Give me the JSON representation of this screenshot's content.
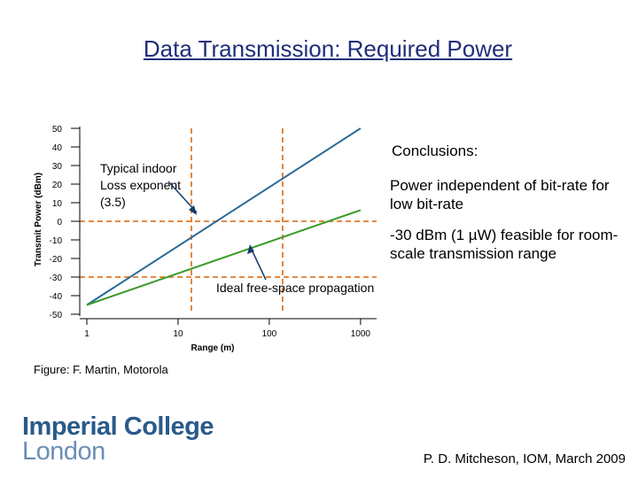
{
  "title": "Data Transmission: Required Power",
  "chart_data": {
    "type": "line",
    "xlabel": "Range (m)",
    "ylabel": "Transmit Power (dBm)",
    "xscale": "log",
    "xlim": [
      1,
      1500
    ],
    "ylim": [
      -50,
      50
    ],
    "x_ticks": [
      1,
      10,
      100,
      1000
    ],
    "x_tick_labels": [
      "1",
      "10",
      "100",
      "1000"
    ],
    "y_ticks": [
      50,
      40,
      30,
      20,
      10,
      0,
      -10,
      -20,
      -30,
      -40,
      -50
    ],
    "y_tick_labels": [
      "50",
      "40",
      "30",
      "20",
      "10",
      "0",
      "-10",
      "-20",
      "-30",
      "-40",
      "-50"
    ],
    "series": [
      {
        "name": "Typical indoor Loss exponent (3.5)",
        "color": "#2b6a96",
        "x": [
          1,
          1000
        ],
        "y": [
          -45,
          50
        ]
      },
      {
        "name": "Ideal free-space propagation",
        "color": "#3a9a2a",
        "x": [
          1,
          1000
        ],
        "y": [
          -45,
          6
        ]
      }
    ],
    "reference_lines": {
      "color": "#e07a2a",
      "vertical_x": [
        14,
        140
      ],
      "horizontal_y": [
        0,
        -30
      ]
    },
    "annotations": [
      {
        "text_lines": [
          "Typical indoor",
          "Loss exponent",
          "(3.5)"
        ]
      },
      {
        "text": "Ideal free-space propagation"
      }
    ]
  },
  "conclusions": {
    "heading": "Conclusions:",
    "p1": "Power independent of bit-rate for low bit-rate",
    "p2": "-30 dBm (1 µW) feasible for room-scale transmission range"
  },
  "credit": "Figure: F. Martin, Motorola",
  "logo": {
    "line1": "Imperial College",
    "line2": "London"
  },
  "footer": "P. D. Mitcheson, IOM, March 2009"
}
